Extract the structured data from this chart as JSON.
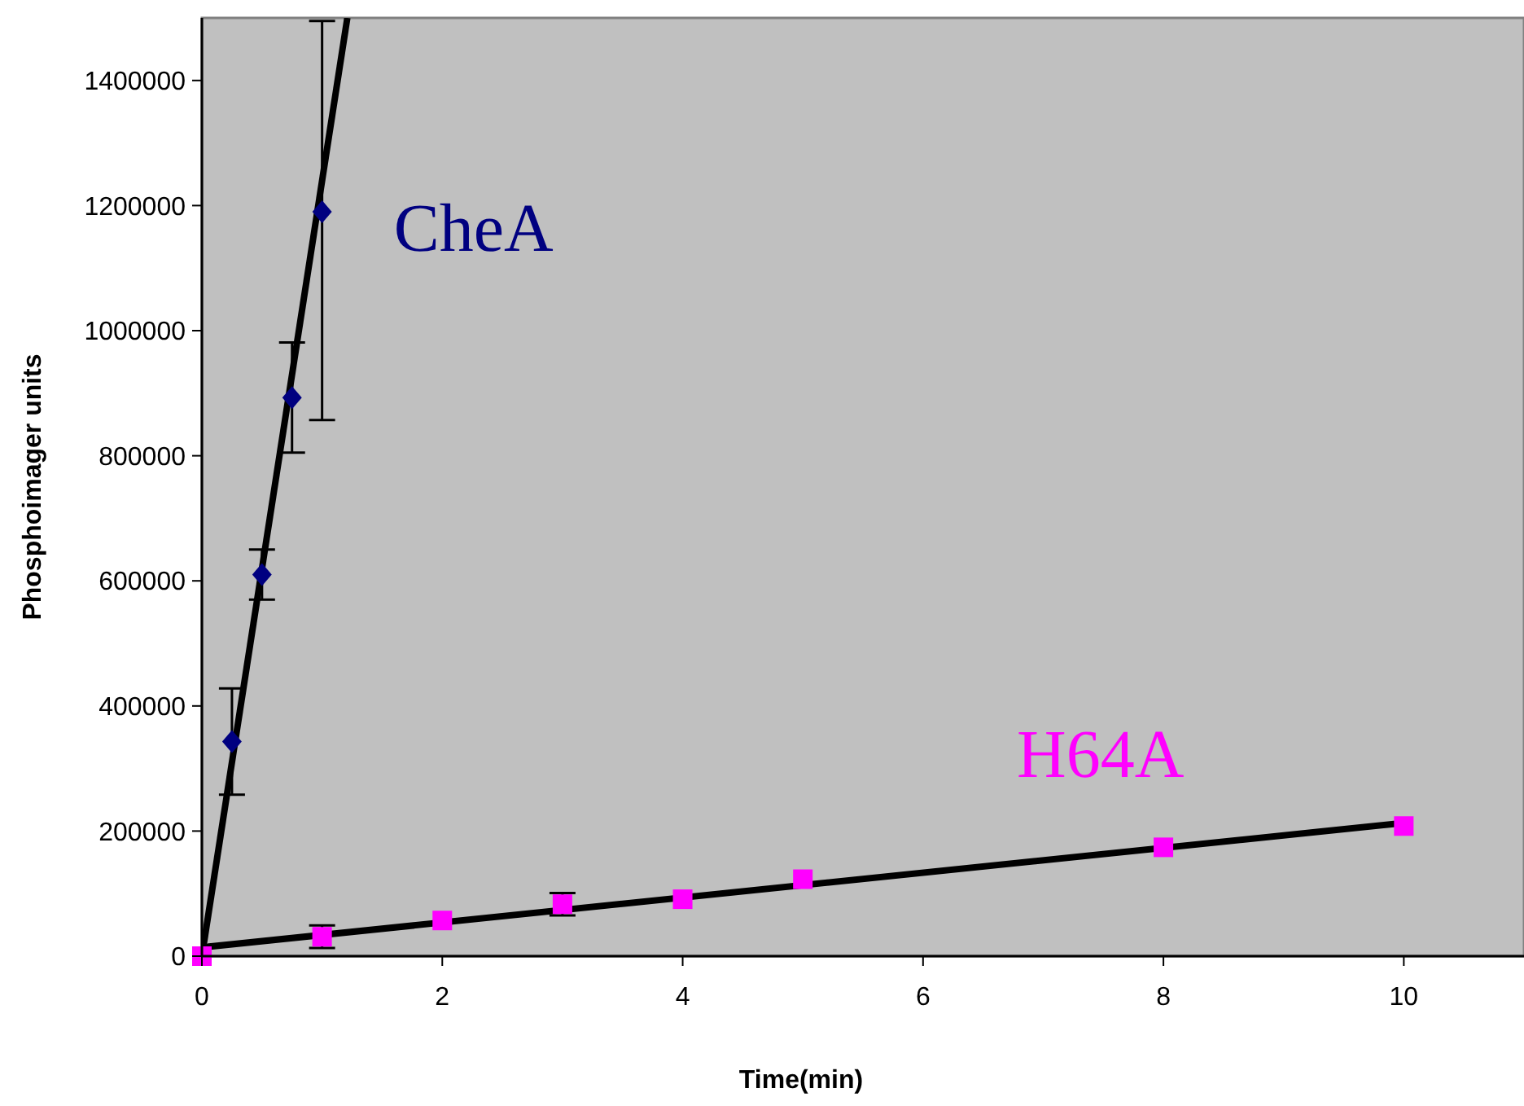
{
  "chart_data": {
    "type": "scatter",
    "xlabel": "Time(min)",
    "ylabel": "Phosphoimager units",
    "xlim": [
      0,
      11
    ],
    "xticks": [
      0,
      2,
      4,
      6,
      8,
      10
    ],
    "ylim": [
      0,
      1500000
    ],
    "yticks": [
      0,
      200000,
      400000,
      600000,
      800000,
      1000000,
      1200000,
      1400000
    ],
    "grid": false,
    "series": [
      {
        "type": "line",
        "color": "#000000",
        "marker": "none",
        "x": [
          0,
          1.21
        ],
        "values": [
          0,
          1500000
        ]
      },
      {
        "type": "line",
        "color": "#000000",
        "marker": "none",
        "x": [
          0,
          10
        ],
        "values": [
          14000,
          213000
        ]
      },
      {
        "name": "CheA",
        "color": "#000080",
        "marker": "diamond",
        "x": [
          0.25,
          0.5,
          0.75,
          1
        ],
        "values": [
          343000,
          610000,
          893000,
          1190000
        ],
        "errors": [
          85000,
          40000,
          88000,
          [
            857000,
            1495000
          ]
        ]
      },
      {
        "name": "H64A",
        "color": "#ff00ff",
        "marker": "square",
        "x": [
          0,
          1,
          2,
          3,
          4,
          5,
          8,
          10
        ],
        "values": [
          0,
          31000,
          57000,
          83000,
          91000,
          123000,
          174000,
          208000
        ],
        "errors": [
          null,
          18000,
          null,
          18000,
          null,
          null,
          null,
          null
        ]
      }
    ]
  }
}
